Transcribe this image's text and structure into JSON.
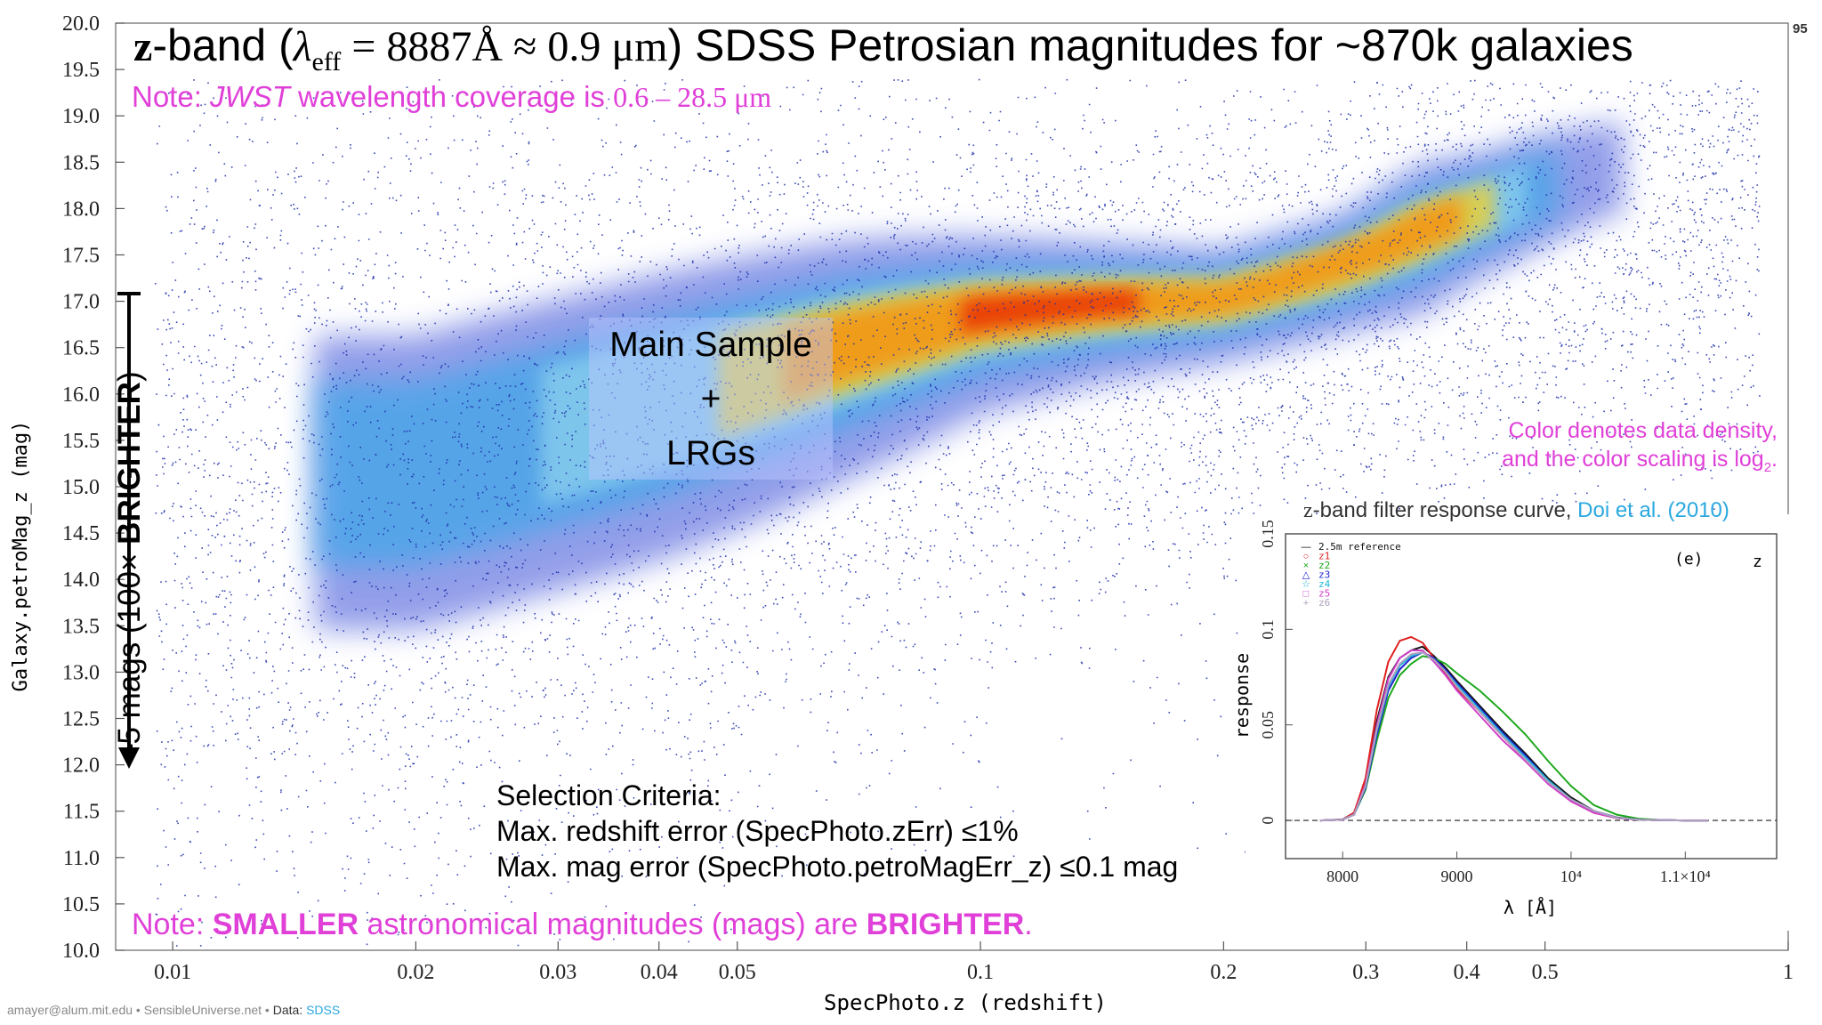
{
  "page_number": "95",
  "title": {
    "prefix": "z",
    "band_word": "-band (",
    "lambda": "λ",
    "eff": "eff",
    "formula": " = 8887Å ≈ 0.9 μm",
    "rest": ") SDSS Petrosian magnitudes for ~870k galaxies"
  },
  "note_top": {
    "prefix": "Note: ",
    "jwst": "JWST",
    "middle": " wavelength coverage is ",
    "range": "0.6 – 28.5 μm"
  },
  "note_bottom": {
    "prefix": "Note: ",
    "smaller": "SMALLER",
    "middle": " astronomical magnitudes (mags) are ",
    "brighter": "BRIGHTER",
    "end": "."
  },
  "density_note": {
    "line1": "Color denotes data density,",
    "line2": "and the color scaling is log",
    "sub": "2",
    "end": "."
  },
  "main_sample": {
    "line1": "Main Sample",
    "line2": "+",
    "line3": "LRGs"
  },
  "criteria": {
    "heading": "Selection Criteria:",
    "line1": "Max. redshift error (SpecPhoto.zErr) ≤1%",
    "line2": "Max. mag error (SpecPhoto.petroMagErr_z) ≤0.1 mag"
  },
  "brighter_arrow": {
    "prefix": "–5 mags (100× ",
    "bold": "BRIGHTER",
    "end": ")"
  },
  "footer": {
    "email": "amayer@alum.mit.edu",
    "sep1": " • ",
    "site": "SensibleUniverse.net",
    "sep2": " • ",
    "data_label": "Data: ",
    "data_link": "SDSS"
  },
  "colors": {
    "magenta": "#e040d8",
    "link": "#2aa8e0",
    "sparse": "#1a2aa8",
    "dense": "#e81e00"
  },
  "chart_data": [
    {
      "type": "scatter",
      "title": "",
      "xlabel": "SpecPhoto.z (redshift)",
      "ylabel": "Galaxy.petroMag_z (mag)",
      "xscale": "log",
      "xlim": [
        0.0085,
        1.0
      ],
      "ylim": [
        10.0,
        20.0
      ],
      "xticks": [
        0.01,
        0.02,
        0.03,
        0.04,
        0.05,
        0.1,
        0.2,
        0.3,
        0.4,
        0.5,
        1
      ],
      "xtick_labels": [
        "0.01",
        "0.02",
        "0.03",
        "0.04",
        "0.05",
        "0.1",
        "0.2",
        "0.3",
        "0.4",
        "0.5",
        "1"
      ],
      "yticks": [
        10.0,
        10.5,
        11.0,
        11.5,
        12.0,
        12.5,
        13.0,
        13.5,
        14.0,
        14.5,
        15.0,
        15.5,
        16.0,
        16.5,
        17.0,
        17.5,
        18.0,
        18.5,
        19.0,
        19.5,
        20.0
      ],
      "ytick_labels": [
        "10.0",
        "10.5",
        "11.0",
        "11.5",
        "12.0",
        "12.5",
        "13.0",
        "13.5",
        "14.0",
        "14.5",
        "15.0",
        "15.5",
        "16.0",
        "16.5",
        "17.0",
        "17.5",
        "18.0",
        "18.5",
        "19.0",
        "19.5",
        "20.0"
      ],
      "yaxis_inverted": false,
      "grid": false,
      "color_scale": "log2 density",
      "density_ridge": [
        {
          "x": 0.02,
          "y": 15.3,
          "spread": 1.1,
          "weight": 0.6
        },
        {
          "x": 0.04,
          "y": 16.0,
          "spread": 0.9,
          "weight": 1.0
        },
        {
          "x": 0.07,
          "y": 16.6,
          "spread": 0.6,
          "weight": 1.6
        },
        {
          "x": 0.1,
          "y": 16.9,
          "spread": 0.4,
          "weight": 2.0
        },
        {
          "x": 0.14,
          "y": 17.0,
          "spread": 0.3,
          "weight": 2.2
        },
        {
          "x": 0.2,
          "y": 17.05,
          "spread": 0.3,
          "weight": 1.5
        },
        {
          "x": 0.28,
          "y": 17.4,
          "spread": 0.35,
          "weight": 1.2
        },
        {
          "x": 0.35,
          "y": 17.8,
          "spread": 0.4,
          "weight": 1.5
        },
        {
          "x": 0.42,
          "y": 18.05,
          "spread": 0.35,
          "weight": 1.3
        },
        {
          "x": 0.5,
          "y": 18.3,
          "spread": 0.4,
          "weight": 0.7
        },
        {
          "x": 0.6,
          "y": 18.5,
          "spread": 0.4,
          "weight": 0.3
        }
      ]
    },
    {
      "type": "line",
      "title_prefix": "z",
      "title_middle": "-band filter response curve, ",
      "title_link": "Doi et al. (2010)",
      "xlabel": "λ [Å]",
      "ylabel": "response",
      "panel_label": "(e)",
      "band_label": "z",
      "xlim": [
        7500,
        11800
      ],
      "ylim": [
        -0.02,
        0.15
      ],
      "xticks": [
        8000,
        9000,
        10000,
        11000
      ],
      "xtick_labels": [
        "8000",
        "9000",
        "10⁴",
        "1.1×10⁴"
      ],
      "yticks": [
        0,
        0.05,
        0.1,
        0.15
      ],
      "ytick_labels": [
        "0",
        "0.05",
        "0.1",
        "0.15"
      ],
      "series": [
        {
          "name": "2.5m reference",
          "marker": "—",
          "color": "#111111",
          "x": [
            7800,
            8000,
            8100,
            8200,
            8300,
            8400,
            8500,
            8600,
            8700,
            8800,
            8900,
            9000,
            9200,
            9400,
            9600,
            9800,
            10000,
            10200,
            10400,
            10600,
            10800,
            11000,
            11200
          ],
          "y": [
            0,
            0.0005,
            0.004,
            0.02,
            0.052,
            0.075,
            0.085,
            0.089,
            0.091,
            0.086,
            0.08,
            0.073,
            0.06,
            0.047,
            0.035,
            0.022,
            0.012,
            0.005,
            0.0015,
            0.0004,
            0.0001,
            0,
            0
          ]
        },
        {
          "name": "z1",
          "marker": "○",
          "color": "#e02020",
          "x": [
            7800,
            8000,
            8100,
            8200,
            8300,
            8400,
            8500,
            8600,
            8700,
            8800,
            8900,
            9000,
            9200,
            9400,
            9600,
            9800,
            10000,
            10200,
            10400,
            10600,
            10800,
            11000,
            11200
          ],
          "y": [
            0,
            0.0005,
            0.004,
            0.022,
            0.058,
            0.083,
            0.094,
            0.096,
            0.093,
            0.085,
            0.077,
            0.069,
            0.057,
            0.044,
            0.032,
            0.02,
            0.01,
            0.004,
            0.0012,
            0.0003,
            0.0001,
            0,
            0
          ]
        },
        {
          "name": "z2",
          "marker": "×",
          "color": "#1ea81e",
          "x": [
            7800,
            8000,
            8100,
            8200,
            8300,
            8400,
            8500,
            8600,
            8700,
            8800,
            8900,
            9000,
            9200,
            9400,
            9600,
            9800,
            10000,
            10200,
            10400,
            10600,
            10800,
            11000,
            11200
          ],
          "y": [
            0,
            0.0004,
            0.003,
            0.016,
            0.042,
            0.064,
            0.076,
            0.082,
            0.086,
            0.085,
            0.082,
            0.077,
            0.068,
            0.057,
            0.045,
            0.031,
            0.018,
            0.008,
            0.003,
            0.0008,
            0.0002,
            0,
            0
          ]
        },
        {
          "name": "z3",
          "marker": "△",
          "color": "#2222cc",
          "x": [
            7800,
            8000,
            8100,
            8200,
            8300,
            8400,
            8500,
            8600,
            8700,
            8800,
            8900,
            9000,
            9200,
            9400,
            9600,
            9800,
            10000,
            10200,
            10400,
            10600,
            10800,
            11000,
            11200
          ],
          "y": [
            0,
            0.0004,
            0.003,
            0.017,
            0.045,
            0.068,
            0.079,
            0.085,
            0.088,
            0.085,
            0.079,
            0.072,
            0.059,
            0.046,
            0.034,
            0.021,
            0.011,
            0.005,
            0.0014,
            0.0004,
            0.0001,
            0,
            0
          ]
        },
        {
          "name": "z4",
          "marker": "☆",
          "color": "#20b8d8",
          "x": [
            7800,
            8000,
            8100,
            8200,
            8300,
            8400,
            8500,
            8600,
            8700,
            8800,
            8900,
            9000,
            9200,
            9400,
            9600,
            9800,
            10000,
            10200,
            10400,
            10600,
            10800,
            11000,
            11200
          ],
          "y": [
            0,
            0.0004,
            0.003,
            0.018,
            0.047,
            0.07,
            0.081,
            0.086,
            0.088,
            0.084,
            0.078,
            0.071,
            0.058,
            0.045,
            0.033,
            0.021,
            0.011,
            0.005,
            0.0013,
            0.0003,
            0.0001,
            0,
            0
          ]
        },
        {
          "name": "z5",
          "marker": "□",
          "color": "#d040c8",
          "x": [
            7800,
            8000,
            8100,
            8200,
            8300,
            8400,
            8500,
            8600,
            8700,
            8800,
            8900,
            9000,
            9200,
            9400,
            9600,
            9800,
            10000,
            10200,
            10400,
            10600,
            10800,
            11000,
            11200
          ],
          "y": [
            0,
            0.0004,
            0.003,
            0.019,
            0.05,
            0.074,
            0.085,
            0.089,
            0.089,
            0.083,
            0.076,
            0.068,
            0.055,
            0.042,
            0.031,
            0.019,
            0.01,
            0.004,
            0.0012,
            0.0003,
            0.0001,
            0,
            0
          ]
        },
        {
          "name": "z6",
          "marker": "+",
          "color": "#b0a0c0",
          "x": [
            7800,
            8000,
            8100,
            8200,
            8300,
            8400,
            8500,
            8600,
            8700,
            8800,
            8900,
            9000,
            9200,
            9400,
            9600,
            9800,
            10000,
            10200,
            10400,
            10600,
            10800,
            11000,
            11200
          ],
          "y": [
            0,
            0.0004,
            0.003,
            0.018,
            0.048,
            0.071,
            0.082,
            0.087,
            0.088,
            0.084,
            0.078,
            0.07,
            0.057,
            0.044,
            0.032,
            0.02,
            0.011,
            0.005,
            0.0013,
            0.0003,
            0.0001,
            0,
            0
          ]
        }
      ]
    }
  ]
}
